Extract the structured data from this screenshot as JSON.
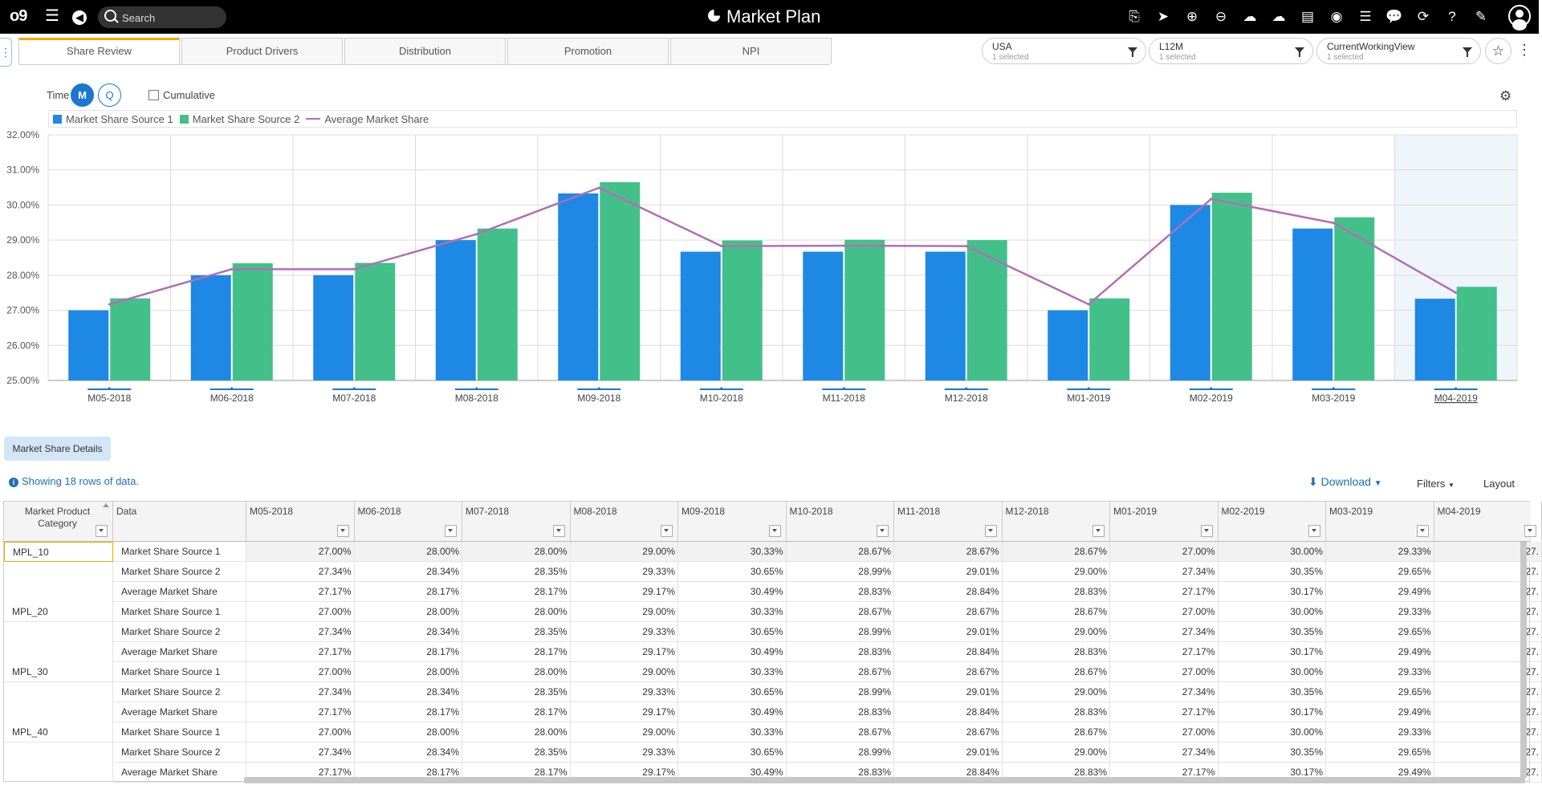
{
  "app": {
    "logo": "o9",
    "title": "Market Plan",
    "search_placeholder": "Search",
    "right_icons": [
      "share-icon",
      "send-icon",
      "plus-icon",
      "minus-icon",
      "cloud-upload-icon",
      "cloud-download-icon",
      "pdf-icon",
      "target-icon",
      "list-icon",
      "comment-icon",
      "refresh-icon",
      "help-icon",
      "edit-icon"
    ]
  },
  "tabs": [
    {
      "label": "Share Review",
      "active": true
    },
    {
      "label": "Product Drivers",
      "active": false
    },
    {
      "label": "Distribution",
      "active": false
    },
    {
      "label": "Promotion",
      "active": false
    },
    {
      "label": "NPI",
      "active": false
    }
  ],
  "filters": [
    {
      "label": "USA",
      "sub": "1 selected"
    },
    {
      "label": "L12M",
      "sub": "1 selected"
    },
    {
      "label": "CurrentWorkingView",
      "sub": "1 selected"
    }
  ],
  "controls": {
    "time_label": "Time",
    "m": "M",
    "q": "Q",
    "cumulative": "Cumulative"
  },
  "legend": [
    "Market Share Source 1",
    "Market Share Source 2",
    "Average Market Share"
  ],
  "colors": {
    "source1": "#1e88e5",
    "source2": "#43c08a",
    "average": "#b26eb7",
    "accent": "#1978cf",
    "highlight_band": "#eef6fb"
  },
  "chart_data": {
    "type": "bar",
    "categories": [
      "M05-2018",
      "M06-2018",
      "M07-2018",
      "M08-2018",
      "M09-2018",
      "M10-2018",
      "M11-2018",
      "M12-2018",
      "M01-2019",
      "M02-2019",
      "M03-2019",
      "M04-2019"
    ],
    "series": [
      {
        "name": "Market Share Source 1",
        "type": "bar",
        "values": [
          27.0,
          28.0,
          28.0,
          29.0,
          30.33,
          28.67,
          28.67,
          28.67,
          27.0,
          30.0,
          29.33,
          27.33
        ]
      },
      {
        "name": "Market Share Source 2",
        "type": "bar",
        "values": [
          27.34,
          28.34,
          28.35,
          29.33,
          30.65,
          28.99,
          29.01,
          29.0,
          27.34,
          30.35,
          29.65,
          27.67
        ]
      },
      {
        "name": "Average Market Share",
        "type": "line",
        "values": [
          27.17,
          28.17,
          28.17,
          29.17,
          30.49,
          28.83,
          28.84,
          28.83,
          27.17,
          30.17,
          29.49,
          27.5
        ]
      }
    ],
    "yticks": [
      "25.00%",
      "26.00%",
      "27.00%",
      "28.00%",
      "29.00%",
      "30.00%",
      "31.00%",
      "32.00%"
    ],
    "ylim": [
      25,
      32
    ],
    "highlighted_category": "M04-2019",
    "grid": true,
    "legend_position": "top"
  },
  "details_button": "Market Share Details",
  "info_text": "Showing 18 rows of data.",
  "toolbar": {
    "download": "Download",
    "filters": "Filters",
    "layout": "Layout"
  },
  "table": {
    "col_header_category": "Market Product Category",
    "col_header_data": "Data",
    "columns": [
      "M05-2018",
      "M06-2018",
      "M07-2018",
      "M08-2018",
      "M09-2018",
      "M10-2018",
      "M11-2018",
      "M12-2018",
      "M01-2019",
      "M02-2019",
      "M03-2019",
      "M04-2019"
    ],
    "rows": [
      {
        "category": "MPL_10",
        "label": "Market Share Source 1",
        "values": [
          "27.00%",
          "28.00%",
          "28.00%",
          "29.00%",
          "30.33%",
          "28.67%",
          "28.67%",
          "28.67%",
          "27.00%",
          "30.00%",
          "29.33%",
          "27."
        ]
      },
      {
        "category": "",
        "label": "Market Share Source 2",
        "values": [
          "27.34%",
          "28.34%",
          "28.35%",
          "29.33%",
          "30.65%",
          "28.99%",
          "29.01%",
          "29.00%",
          "27.34%",
          "30.35%",
          "29.65%",
          "27."
        ]
      },
      {
        "category": "",
        "label": "Average Market Share",
        "values": [
          "27.17%",
          "28.17%",
          "28.17%",
          "29.17%",
          "30.49%",
          "28.83%",
          "28.84%",
          "28.83%",
          "27.17%",
          "30.17%",
          "29.49%",
          "27."
        ]
      },
      {
        "category": "MPL_20",
        "label": "Market Share Source 1",
        "values": [
          "27.00%",
          "28.00%",
          "28.00%",
          "29.00%",
          "30.33%",
          "28.67%",
          "28.67%",
          "28.67%",
          "27.00%",
          "30.00%",
          "29.33%",
          "27."
        ]
      },
      {
        "category": "",
        "label": "Market Share Source 2",
        "values": [
          "27.34%",
          "28.34%",
          "28.35%",
          "29.33%",
          "30.65%",
          "28.99%",
          "29.01%",
          "29.00%",
          "27.34%",
          "30.35%",
          "29.65%",
          "27."
        ]
      },
      {
        "category": "",
        "label": "Average Market Share",
        "values": [
          "27.17%",
          "28.17%",
          "28.17%",
          "29.17%",
          "30.49%",
          "28.83%",
          "28.84%",
          "28.83%",
          "27.17%",
          "30.17%",
          "29.49%",
          "27."
        ]
      },
      {
        "category": "MPL_30",
        "label": "Market Share Source 1",
        "values": [
          "27.00%",
          "28.00%",
          "28.00%",
          "29.00%",
          "30.33%",
          "28.67%",
          "28.67%",
          "28.67%",
          "27.00%",
          "30.00%",
          "29.33%",
          "27."
        ]
      },
      {
        "category": "",
        "label": "Market Share Source 2",
        "values": [
          "27.34%",
          "28.34%",
          "28.35%",
          "29.33%",
          "30.65%",
          "28.99%",
          "29.01%",
          "29.00%",
          "27.34%",
          "30.35%",
          "29.65%",
          "27."
        ]
      },
      {
        "category": "",
        "label": "Average Market Share",
        "values": [
          "27.17%",
          "28.17%",
          "28.17%",
          "29.17%",
          "30.49%",
          "28.83%",
          "28.84%",
          "28.83%",
          "27.17%",
          "30.17%",
          "29.49%",
          "27."
        ]
      },
      {
        "category": "MPL_40",
        "label": "Market Share Source 1",
        "values": [
          "27.00%",
          "28.00%",
          "28.00%",
          "29.00%",
          "30.33%",
          "28.67%",
          "28.67%",
          "28.67%",
          "27.00%",
          "30.00%",
          "29.33%",
          "27."
        ]
      },
      {
        "category": "",
        "label": "Market Share Source 2",
        "values": [
          "27.34%",
          "28.34%",
          "28.35%",
          "29.33%",
          "30.65%",
          "28.99%",
          "29.01%",
          "29.00%",
          "27.34%",
          "30.35%",
          "29.65%",
          "27."
        ]
      },
      {
        "category": "",
        "label": "Average Market Share",
        "values": [
          "27.17%",
          "28.17%",
          "28.17%",
          "29.17%",
          "30.49%",
          "28.83%",
          "28.84%",
          "28.83%",
          "27.17%",
          "30.17%",
          "29.49%",
          "27."
        ]
      }
    ]
  }
}
